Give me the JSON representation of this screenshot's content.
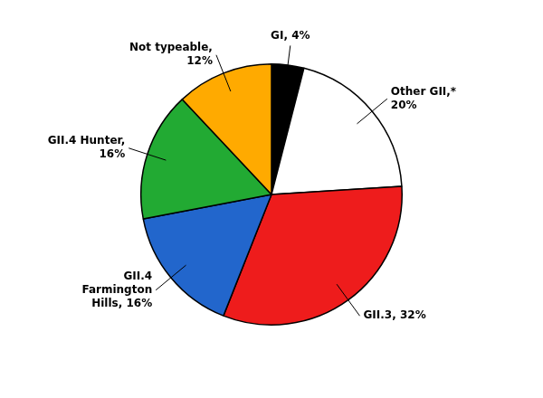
{
  "chart_data": {
    "type": "pie",
    "values": [
      4,
      20,
      32,
      16,
      16,
      12
    ],
    "value_labels": [
      "GI, 4%",
      "Other GII,*\n20%",
      "GII.3, 32%",
      "GII.4\nFarmington\nHills, 16%",
      "GII.4 Hunter,\n16%",
      "Not typeable,\n12%"
    ],
    "colors": [
      "#000000",
      "#ffffff",
      "#ee1c1c",
      "#2266cc",
      "#22aa33",
      "#ffaa00"
    ],
    "data_labels": true,
    "legend": false
  }
}
